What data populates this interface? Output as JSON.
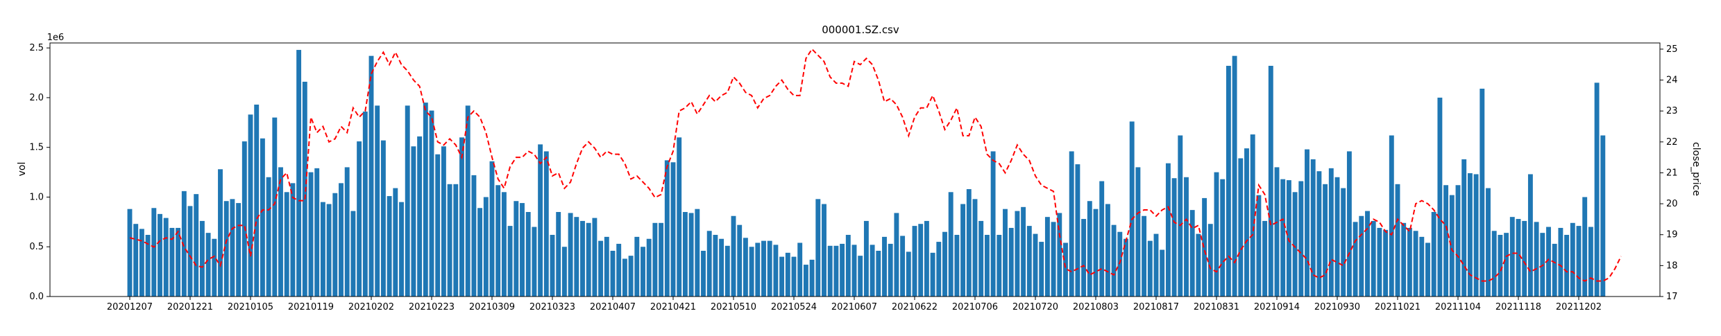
{
  "chart_data": {
    "type": "bar+line",
    "title": "000001.SZ.csv",
    "ylabel_left": "vol",
    "ylabel_right": "close_price",
    "y_left_offset_label": "1e6",
    "y_left_scale": 1000000,
    "ylim_left": [
      0,
      2.55
    ],
    "ylim_right": [
      17,
      25.2
    ],
    "y_left_ticks": [
      "0.0",
      "0.5",
      "1.0",
      "1.5",
      "2.0",
      "2.5"
    ],
    "y_right_ticks": [
      "17",
      "18",
      "19",
      "20",
      "21",
      "22",
      "23",
      "24",
      "25"
    ],
    "x_tick_labels": [
      "20201207",
      "20201221",
      "20210105",
      "20210119",
      "20210202",
      "20210223",
      "20210309",
      "20210323",
      "20210407",
      "20210421",
      "20210510",
      "20210524",
      "20210607",
      "20210622",
      "20210706",
      "20210720",
      "20210803",
      "20210817",
      "20210831",
      "20210914",
      "20210930",
      "20211021",
      "20211104",
      "20211118",
      "20211202"
    ],
    "x_tick_indices": [
      0,
      10,
      20,
      30,
      40,
      50,
      60,
      70,
      80,
      90,
      100,
      110,
      120,
      130,
      140,
      150,
      160,
      170,
      180,
      190,
      200,
      210,
      220,
      230,
      240
    ],
    "grid": false,
    "colors": {
      "bars": "#1f77b4",
      "line": "#ff0000"
    },
    "series": [
      {
        "name": "vol",
        "kind": "bar",
        "values": [
          0.88,
          0.73,
          0.68,
          0.62,
          0.89,
          0.83,
          0.79,
          0.69,
          0.69,
          1.06,
          0.91,
          1.03,
          0.76,
          0.64,
          0.58,
          1.28,
          0.96,
          0.98,
          0.94,
          1.56,
          1.83,
          1.93,
          1.59,
          1.2,
          1.8,
          1.3,
          1.05,
          1.14,
          2.48,
          2.16,
          1.25,
          1.29,
          0.95,
          0.93,
          1.04,
          1.14,
          1.3,
          0.86,
          1.56,
          1.86,
          2.42,
          1.92,
          1.57,
          1.01,
          1.09,
          0.95,
          1.92,
          1.51,
          1.61,
          1.95,
          1.87,
          1.43,
          1.51,
          1.13,
          1.13,
          1.6,
          1.92,
          1.22,
          0.89,
          1.0,
          1.36,
          1.12,
          1.05,
          0.71,
          0.96,
          0.94,
          0.85,
          0.7,
          1.53,
          1.46,
          0.62,
          0.85,
          0.5,
          0.84,
          0.8,
          0.76,
          0.74,
          0.79,
          0.56,
          0.6,
          0.46,
          0.53,
          0.38,
          0.41,
          0.6,
          0.5,
          0.58,
          0.74,
          0.74,
          1.37,
          1.35,
          1.6,
          0.85,
          0.84,
          0.88,
          0.46,
          0.66,
          0.62,
          0.58,
          0.51,
          0.81,
          0.72,
          0.59,
          0.5,
          0.54,
          0.56,
          0.56,
          0.52,
          0.4,
          0.44,
          0.4,
          0.54,
          0.32,
          0.37,
          0.98,
          0.93,
          0.51,
          0.51,
          0.53,
          0.62,
          0.52,
          0.41,
          0.76,
          0.52,
          0.46,
          0.6,
          0.53,
          0.84,
          0.61,
          0.45,
          0.71,
          0.73,
          0.76,
          0.44,
          0.55,
          0.65,
          1.05,
          0.62,
          0.93,
          1.08,
          0.98,
          0.76,
          0.62,
          1.46,
          0.62,
          0.88,
          0.69,
          0.86,
          0.9,
          0.71,
          0.63,
          0.55,
          0.8,
          0.75,
          0.84,
          0.54,
          1.46,
          1.33,
          0.78,
          0.96,
          0.88,
          1.16,
          0.93,
          0.72,
          0.65,
          0.58,
          1.76,
          1.3,
          0.81,
          0.56,
          0.63,
          0.47,
          1.34,
          1.19,
          1.62,
          1.2,
          0.87,
          0.63,
          0.99,
          0.73,
          1.25,
          1.18,
          2.32,
          2.42,
          1.39,
          1.49,
          1.63,
          1.02,
          0.76,
          2.32,
          1.3,
          1.18,
          1.17,
          1.05,
          1.16,
          1.48,
          1.38,
          1.26,
          1.13,
          1.29,
          1.2,
          1.09,
          1.46,
          0.75,
          0.81,
          0.86,
          0.76,
          0.69,
          0.67,
          1.62,
          1.13,
          0.74,
          0.69,
          0.66,
          0.6,
          0.54,
          0.85,
          2.0,
          1.12,
          1.02,
          1.12,
          1.38,
          1.24,
          1.23,
          2.09,
          1.09,
          0.66,
          0.62,
          0.64,
          0.8,
          0.78,
          0.76,
          1.23,
          0.75,
          0.64,
          0.7,
          0.53,
          0.69,
          0.62,
          0.74,
          0.71,
          1.0,
          0.7,
          2.15,
          1.62
        ]
      },
      {
        "name": "close_price",
        "kind": "line",
        "values": [
          18.9,
          18.85,
          18.8,
          18.7,
          18.6,
          18.8,
          18.9,
          18.85,
          19.1,
          18.6,
          18.3,
          18.0,
          17.95,
          18.2,
          18.3,
          18.0,
          18.8,
          19.2,
          19.3,
          19.3,
          18.3,
          19.5,
          19.8,
          19.8,
          20.0,
          20.8,
          21.0,
          20.2,
          20.1,
          20.1,
          22.8,
          22.3,
          22.5,
          22.0,
          22.1,
          22.5,
          22.3,
          23.1,
          22.8,
          23.0,
          24.2,
          24.6,
          24.9,
          24.5,
          24.9,
          24.5,
          24.3,
          24.0,
          23.8,
          23.0,
          22.8,
          22.0,
          21.9,
          22.1,
          21.9,
          21.5,
          22.8,
          23.0,
          22.8,
          22.3,
          21.5,
          20.8,
          20.5,
          21.2,
          21.5,
          21.5,
          21.7,
          21.6,
          21.3,
          21.5,
          20.9,
          21.0,
          20.5,
          20.7,
          21.3,
          21.8,
          22.0,
          21.8,
          21.5,
          21.7,
          21.6,
          21.6,
          21.3,
          20.8,
          20.9,
          20.7,
          20.5,
          20.2,
          20.3,
          21.2,
          21.7,
          23.0,
          23.1,
          23.3,
          22.9,
          23.2,
          23.5,
          23.3,
          23.5,
          23.6,
          24.1,
          23.9,
          23.6,
          23.5,
          23.1,
          23.4,
          23.5,
          23.8,
          24.0,
          23.7,
          23.5,
          23.5,
          24.7,
          25.0,
          24.8,
          24.6,
          24.1,
          23.9,
          23.9,
          23.8,
          24.6,
          24.5,
          24.7,
          24.5,
          24.0,
          23.3,
          23.4,
          23.2,
          22.8,
          22.2,
          22.8,
          23.1,
          23.1,
          23.5,
          23.0,
          22.4,
          22.7,
          23.1,
          22.2,
          22.2,
          22.8,
          22.5,
          21.6,
          21.4,
          21.3,
          21.0,
          21.4,
          21.9,
          21.6,
          21.4,
          20.9,
          20.6,
          20.5,
          20.4,
          19.0,
          17.9,
          17.8,
          17.9,
          18.0,
          17.7,
          17.8,
          17.9,
          17.8,
          17.7,
          18.1,
          18.8,
          19.5,
          19.7,
          19.8,
          19.8,
          19.6,
          19.8,
          19.9,
          19.4,
          19.3,
          19.5,
          19.2,
          19.3,
          18.5,
          17.9,
          17.8,
          18.1,
          18.3,
          18.1,
          18.5,
          18.8,
          19.0,
          20.6,
          20.3,
          19.3,
          19.4,
          19.5,
          18.8,
          18.6,
          18.4,
          18.2,
          17.7,
          17.6,
          17.7,
          18.2,
          18.1,
          18.0,
          18.4,
          18.8,
          19.0,
          19.2,
          19.5,
          19.4,
          19.1,
          19.0,
          19.5,
          19.3,
          19.1,
          20.0,
          20.1,
          20.0,
          19.8,
          19.5,
          19.3,
          18.5,
          18.3,
          18.0,
          17.7,
          17.6,
          17.5,
          17.5,
          17.6,
          17.8,
          18.3,
          18.4,
          18.4,
          18.1,
          17.8,
          17.9,
          18.0,
          18.2,
          18.1,
          18.0,
          17.8,
          17.8,
          17.6,
          17.5,
          17.6,
          17.5,
          17.5,
          17.6,
          17.9,
          18.3
        ]
      }
    ]
  }
}
